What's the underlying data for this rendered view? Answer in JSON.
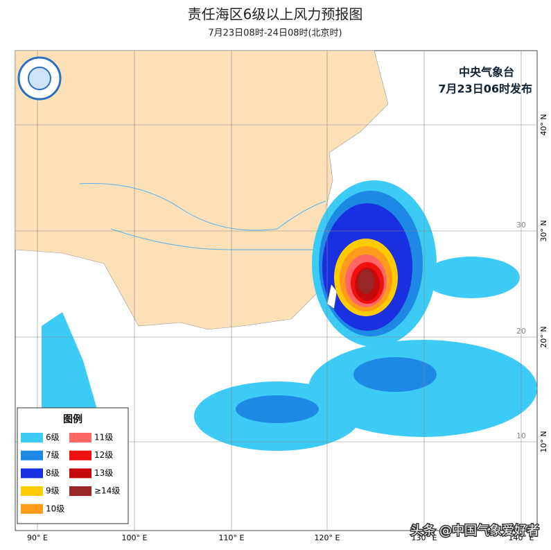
{
  "header": {
    "title": "责任海区6级以上风力预报图",
    "subtitle": "7月23日08时-24日08时(北京时)"
  },
  "issuer": {
    "agency": "中央气象台",
    "issued": "7月23日06时发布"
  },
  "legend": {
    "title": "图例",
    "items": [
      {
        "label": "6级",
        "color": "#3ccbf4"
      },
      {
        "label": "7级",
        "color": "#1e88e5"
      },
      {
        "label": "8级",
        "color": "#1a2fe0"
      },
      {
        "label": "9级",
        "color": "#ffcc00"
      },
      {
        "label": "10级",
        "color": "#ff9a1a"
      },
      {
        "label": "11级",
        "color": "#ff6666"
      },
      {
        "label": "12级",
        "color": "#f01010"
      },
      {
        "label": "13级",
        "color": "#c40a0a"
      },
      {
        "label": "≥14级",
        "color": "#992626"
      }
    ]
  },
  "axes": {
    "longitudes": [
      "90° E",
      "100° E",
      "110° E",
      "120° E",
      "130° E",
      "140° E"
    ],
    "latitudes": [
      "40° N",
      "30° N",
      "20° N",
      "10° N"
    ],
    "inner_latitudes": [
      "30",
      "20",
      "10"
    ]
  },
  "watermark": "头条 @中国气象爱好者"
}
